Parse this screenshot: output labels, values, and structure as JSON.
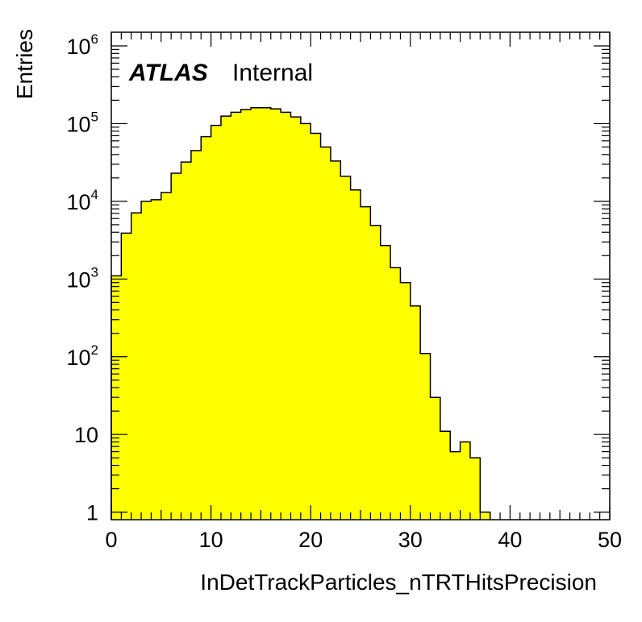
{
  "chart_data": {
    "type": "bar",
    "style": "filled histogram (step)",
    "fill_color": "#ffff00",
    "line_color": "#000000",
    "xlabel": "InDetTrackParticles_nTRTHitsPrecision",
    "ylabel": "Entries",
    "xlim": [
      0,
      50
    ],
    "ylim": [
      0.8,
      1500000
    ],
    "y_scale": "log",
    "grid": false,
    "legend": "none",
    "label": {
      "experiment": "ATLAS",
      "status": "Internal"
    },
    "bin_edges": [
      0,
      1,
      2,
      3,
      4,
      5,
      6,
      7,
      8,
      9,
      10,
      11,
      12,
      13,
      14,
      15,
      16,
      17,
      18,
      19,
      20,
      21,
      22,
      23,
      24,
      25,
      26,
      27,
      28,
      29,
      30,
      31,
      32,
      33,
      34,
      35,
      36,
      37,
      38
    ],
    "values": [
      1100,
      3900,
      7100,
      10000,
      10500,
      13000,
      23000,
      32000,
      45000,
      68000,
      95000,
      125000,
      140000,
      152000,
      160000,
      160000,
      155000,
      140000,
      122000,
      100000,
      75000,
      50000,
      33000,
      21000,
      14000,
      8500,
      4900,
      2700,
      1400,
      900,
      450,
      110,
      30,
      11,
      6,
      8,
      5,
      1
    ],
    "x_ticks": [
      {
        "value": 0,
        "label": "0"
      },
      {
        "value": 10,
        "label": "10"
      },
      {
        "value": 20,
        "label": "20"
      },
      {
        "value": 30,
        "label": "30"
      },
      {
        "value": 40,
        "label": "40"
      },
      {
        "value": 50,
        "label": "50"
      }
    ],
    "y_ticks": [
      {
        "value": 1,
        "label": "1",
        "exp": ""
      },
      {
        "value": 10,
        "label": "10",
        "exp": ""
      },
      {
        "value": 100,
        "label": "10",
        "exp": "2"
      },
      {
        "value": 1000,
        "label": "10",
        "exp": "3"
      },
      {
        "value": 10000,
        "label": "10",
        "exp": "4"
      },
      {
        "value": 100000,
        "label": "10",
        "exp": "5"
      },
      {
        "value": 1000000,
        "label": "10",
        "exp": "6"
      }
    ]
  }
}
